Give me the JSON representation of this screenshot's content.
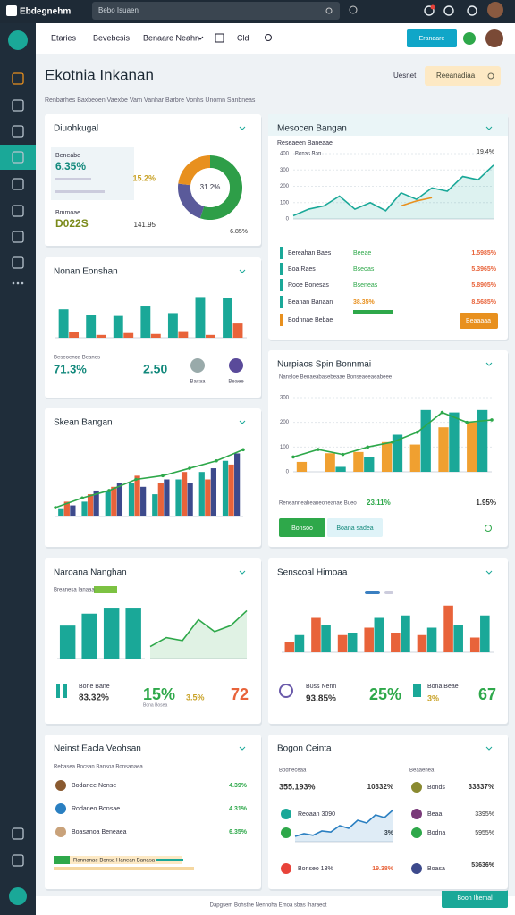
{
  "topbar": {
    "brand": "Ebdegnehm",
    "search": "Bebo Isuaen"
  },
  "nav": {
    "items": [
      "Etaries",
      "Bevebcsis",
      "Benaare Neahn",
      "Cld"
    ],
    "button": "Eranaare"
  },
  "header": {
    "title": "Ekotnia Inkanan",
    "subtitle": "Renbarhes Baxbeoen Vaexbe Varn Vanhar Barbre Vonhs Unomn Sanbneas",
    "filter": "Uesnet",
    "search": "Reeanadiaa"
  },
  "cards": [
    {
      "title": "Diuohkugal",
      "texts": [
        "Beneabe",
        "6.35%",
        "Bmmoae",
        "D022S",
        "15.2%",
        "141.95",
        "6.85%"
      ]
    },
    {
      "title": "Nonan Eonshan",
      "texts": [
        "Beseoenca Beanes",
        "71.3%",
        "2.50",
        "Basaa",
        "Beaee"
      ]
    },
    {
      "title": "Skean Bangan",
      "texts": []
    },
    {
      "title": "Naroana Nanghan",
      "texts": [
        "Breanesa Ianaaa",
        "83.32%",
        "15%",
        "3.5%",
        "72",
        "Bone Bane",
        "Bona Bosea"
      ]
    },
    {
      "title": "Neinst Eacla Veohsan",
      "texts": [
        "Rebasea Bocsan Bansoa Bonsanaea",
        "Bodanee Nonse",
        "4.39%",
        "Rodaneo Bonsae",
        "4.31%",
        "Boasanoa Beneaea",
        "6.35%",
        "Rannanae Bonsa Hanean Banasa"
      ]
    },
    {
      "title": "Mesocen Bangan",
      "texts": [
        "Reseaeen Baneaae",
        "Bonas Ban",
        "19.4%",
        "Bereahan Baes",
        "Beeae",
        "1.5985%",
        "Boa Raes",
        "Bseoas",
        "5.3965%",
        "Rooe Bonesas",
        "Bseneas",
        "5.8905%",
        "Beanan Banaan",
        "38.35%",
        "8.5685%",
        "Bodnnae Bebae",
        "Beaaaaa"
      ]
    },
    {
      "title": "Nurpiaos Spin Bonnmai",
      "texts": [
        "Nansloe Benaeabasebeaae Bonseaeeaeabeee",
        "Reneanneaheaneoneanae Bueo",
        "23.11%",
        "1.95%",
        "Bonsoo",
        "Boana sadea"
      ]
    },
    {
      "title": "Senscoal Himoaa",
      "texts": [
        "B0ss Nenn",
        "93.85%",
        "25%",
        "3%",
        "67",
        "Bona Beae"
      ]
    },
    {
      "title": "Bogon Ceinta",
      "texts": [
        "Bodneceaa",
        "Beaaenea",
        "355.193%",
        "10332%",
        "Bonds",
        "33837%",
        "Reoaan 3090",
        "3%",
        "Beaa",
        "3395%",
        "Bodna",
        "5955%",
        "Bonseo 13%",
        "19.38%",
        "Boasa",
        "53636%"
      ]
    }
  ],
  "footer": {
    "text": "Dapgsem Bohsthe Nennoha Emoa sbas Iharaeot",
    "button": "Boon Ihemal"
  },
  "chart_data": [
    {
      "type": "donut",
      "values": [
        55,
        22,
        23
      ],
      "colors": [
        "#2e9e48",
        "#5a5a9a",
        "#e8901e"
      ],
      "center_label": "31.2%"
    },
    {
      "type": "bar",
      "ylim": [
        0,
        100
      ],
      "series": [
        {
          "kind": "bar",
          "color": "#1aa898",
          "values": [
            60,
            48,
            46,
            66,
            52,
            86,
            84
          ]
        },
        {
          "kind": "bar",
          "color": "#e8633a",
          "values": [
            12,
            6,
            10,
            8,
            14,
            6,
            30
          ]
        }
      ]
    },
    {
      "type": "combo",
      "ylim": [
        0,
        100
      ],
      "series": [
        {
          "kind": "bar",
          "color": "#1aa898",
          "values": [
            10,
            20,
            35,
            45,
            30,
            50,
            60,
            75
          ]
        },
        {
          "kind": "bar",
          "color": "#e8633a",
          "values": [
            20,
            30,
            40,
            55,
            45,
            60,
            50,
            70
          ]
        },
        {
          "kind": "bar",
          "color": "#3d4a8c",
          "values": [
            15,
            35,
            45,
            40,
            50,
            45,
            65,
            85
          ]
        },
        {
          "kind": "line",
          "color": "#2ea84a",
          "values": [
            12,
            25,
            35,
            50,
            55,
            65,
            75,
            90
          ]
        }
      ]
    },
    {
      "type": "bar",
      "ylim": [
        0,
        100
      ],
      "series": [
        {
          "kind": "bar",
          "color": "#1aa898",
          "values": [
            55,
            75,
            85,
            85
          ]
        }
      ]
    },
    {
      "type": "area",
      "ylim": [
        0,
        100
      ],
      "series": [
        {
          "kind": "area",
          "color": "#2ea84a",
          "values": [
            20,
            35,
            30,
            65,
            45,
            55,
            80
          ]
        }
      ]
    },
    {
      "type": "line",
      "ylim": [
        0,
        400
      ],
      "yticks": [
        0,
        100,
        200,
        300,
        400
      ],
      "series": [
        {
          "kind": "area",
          "color": "#1aa898",
          "values": [
            20,
            60,
            80,
            140,
            60,
            100,
            50,
            160,
            120,
            190,
            170,
            260,
            240,
            330
          ]
        },
        {
          "kind": "line",
          "color": "#e8901e",
          "values": [
            null,
            null,
            null,
            null,
            null,
            null,
            null,
            80,
            110,
            130,
            null,
            null,
            null,
            null
          ]
        }
      ]
    },
    {
      "type": "combo",
      "ylim": [
        0,
        300
      ],
      "yticks": [
        0,
        100,
        200,
        300
      ],
      "series": [
        {
          "kind": "bar",
          "color": "#f0a030",
          "values": [
            40,
            75,
            80,
            120,
            110,
            180,
            200
          ]
        },
        {
          "kind": "bar",
          "color": "#1aa898",
          "values": [
            0,
            20,
            60,
            150,
            250,
            240,
            250
          ]
        },
        {
          "kind": "line",
          "color": "#2ea84a",
          "values": [
            60,
            90,
            70,
            100,
            120,
            160,
            240,
            200,
            210
          ]
        }
      ]
    },
    {
      "type": "bar",
      "ylim": [
        0,
        100
      ],
      "series": [
        {
          "kind": "bar",
          "color": "#e8633a",
          "values": [
            20,
            70,
            35,
            50,
            40,
            35,
            95,
            30
          ]
        },
        {
          "kind": "bar",
          "color": "#1aa898",
          "values": [
            35,
            55,
            40,
            70,
            75,
            50,
            55,
            75
          ]
        }
      ]
    },
    {
      "type": "area",
      "ylim": [
        0,
        70
      ],
      "series": [
        {
          "kind": "area",
          "color": "#2a7fc1",
          "values": [
            10,
            15,
            12,
            20,
            18,
            30,
            25,
            40,
            35,
            50,
            45,
            60
          ]
        }
      ]
    }
  ]
}
